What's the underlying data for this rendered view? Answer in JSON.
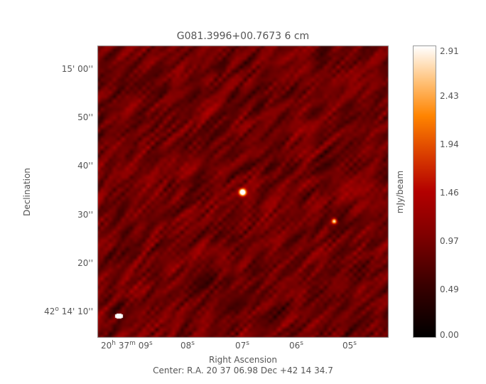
{
  "chart_data": {
    "type": "heatmap",
    "title": "G081.3996+00.7673 6 cm",
    "xlabel": "Right Ascension",
    "ylabel": "Declination",
    "x_ticks": [
      {
        "value": "09",
        "label_parts": [
          "20",
          "h",
          " 37",
          "m",
          " 09",
          "s"
        ]
      },
      {
        "value": "08",
        "label_parts": [
          "08",
          "s"
        ]
      },
      {
        "value": "07",
        "label_parts": [
          "07",
          "s"
        ]
      },
      {
        "value": "06",
        "label_parts": [
          "06",
          "s"
        ]
      },
      {
        "value": "05",
        "label_parts": [
          "05",
          "s"
        ]
      }
    ],
    "y_ticks": [
      {
        "value": 60,
        "label": "15' 00''"
      },
      {
        "value": 50,
        "label": "50''"
      },
      {
        "value": 40,
        "label": "40''"
      },
      {
        "value": 30,
        "label": "30''"
      },
      {
        "value": 20,
        "label": "20''"
      },
      {
        "value": 10,
        "label_prefix": "42",
        "label_sup": "o",
        "label": " 14' 10''"
      }
    ],
    "colorbar": {
      "label": "mJy/beam",
      "range": [
        0.0,
        2.91
      ],
      "ticks": [
        "2.91",
        "2.43",
        "1.94",
        "1.46",
        "0.97",
        "0.49",
        "0.00"
      ],
      "colormap": [
        "#000000",
        "#800000",
        "#b30000",
        "#ff8400",
        "#ffffff"
      ]
    },
    "sources": [
      {
        "ra_s": 6.98,
        "dec_arcsec": 34.7,
        "peak": 2.91
      },
      {
        "ra_s": 5.3,
        "dec_arcsec": 28.7,
        "peak": 2.1
      }
    ],
    "beam": "white ellipse, lower left",
    "footer": "Center:  R.A. 20 37 06.98     Dec  +42 14 34.7"
  }
}
